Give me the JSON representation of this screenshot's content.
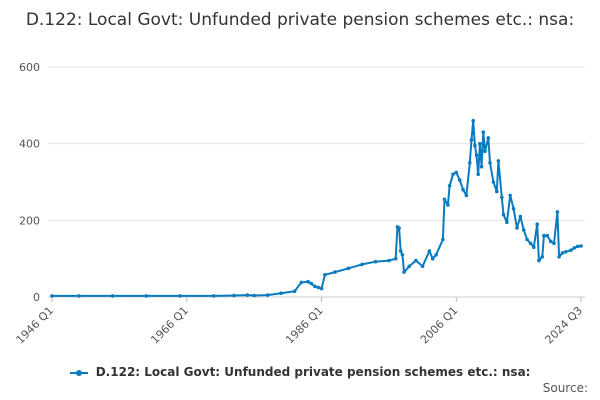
{
  "chart_data": {
    "type": "line",
    "title": "D.122: Local Govt: Unfunded private pension schemes etc.: nsa:",
    "xlabel": "",
    "ylabel": "",
    "ylim": [
      0,
      600
    ],
    "yticks": [
      0,
      200,
      400,
      600
    ],
    "grid": true,
    "legend_position": "bottom",
    "xticks": [
      "1946 Q1",
      "1966 Q1",
      "1986 Q1",
      "2006 Q1",
      "2024 Q3"
    ],
    "series": [
      {
        "name": "D.122: Local Govt: Unfunded private pension schemes etc.: nsa:",
        "color": "#0b7bbf",
        "points": [
          [
            "1946 Q1",
            3
          ],
          [
            "1950 Q1",
            3
          ],
          [
            "1955 Q1",
            3
          ],
          [
            "1960 Q1",
            3
          ],
          [
            "1965 Q1",
            3
          ],
          [
            "1970 Q1",
            3
          ],
          [
            "1973 Q1",
            4
          ],
          [
            "1975 Q1",
            5
          ],
          [
            "1976 Q1",
            4
          ],
          [
            "1978 Q1",
            5
          ],
          [
            "1980 Q1",
            10
          ],
          [
            "1982 Q1",
            15
          ],
          [
            "1983 Q1",
            38
          ],
          [
            "1984 Q1",
            40
          ],
          [
            "1984 Q3",
            35
          ],
          [
            "1985 Q1",
            28
          ],
          [
            "1985 Q3",
            25
          ],
          [
            "1986 Q1",
            22
          ],
          [
            "1986 Q3",
            58
          ],
          [
            "1988 Q1",
            65
          ],
          [
            "1990 Q1",
            75
          ],
          [
            "1992 Q1",
            85
          ],
          [
            "1994 Q1",
            92
          ],
          [
            "1996 Q1",
            95
          ],
          [
            "1997 Q1",
            100
          ],
          [
            "1997 Q2",
            183
          ],
          [
            "1997 Q3",
            180
          ],
          [
            "1997 Q4",
            120
          ],
          [
            "1998 Q1",
            110
          ],
          [
            "1998 Q2",
            65
          ],
          [
            "1999 Q1",
            80
          ],
          [
            "2000 Q1",
            95
          ],
          [
            "2001 Q1",
            80
          ],
          [
            "2002 Q1",
            120
          ],
          [
            "2002 Q3",
            100
          ],
          [
            "2003 Q1",
            110
          ],
          [
            "2004 Q1",
            150
          ],
          [
            "2004 Q2",
            255
          ],
          [
            "2004 Q4",
            240
          ],
          [
            "2005 Q1",
            290
          ],
          [
            "2005 Q3",
            320
          ],
          [
            "2006 Q1",
            325
          ],
          [
            "2006 Q3",
            305
          ],
          [
            "2007 Q1",
            280
          ],
          [
            "2007 Q3",
            265
          ],
          [
            "2008 Q1",
            350
          ],
          [
            "2008 Q2",
            410
          ],
          [
            "2008 Q3",
            460
          ],
          [
            "2008 Q4",
            395
          ],
          [
            "2009 Q1",
            370
          ],
          [
            "2009 Q2",
            320
          ],
          [
            "2009 Q3",
            400
          ],
          [
            "2009 Q4",
            340
          ],
          [
            "2010 Q1",
            430
          ],
          [
            "2010 Q2",
            380
          ],
          [
            "2010 Q4",
            415
          ],
          [
            "2011 Q1",
            350
          ],
          [
            "2011 Q3",
            300
          ],
          [
            "2012 Q1",
            275
          ],
          [
            "2012 Q2",
            355
          ],
          [
            "2012 Q4",
            260
          ],
          [
            "2013 Q1",
            215
          ],
          [
            "2013 Q3",
            195
          ],
          [
            "2014 Q1",
            265
          ],
          [
            "2014 Q3",
            230
          ],
          [
            "2015 Q1",
            180
          ],
          [
            "2015 Q3",
            210
          ],
          [
            "2016 Q1",
            175
          ],
          [
            "2016 Q3",
            150
          ],
          [
            "2017 Q1",
            140
          ],
          [
            "2017 Q3",
            130
          ],
          [
            "2018 Q1",
            190
          ],
          [
            "2018 Q2",
            95
          ],
          [
            "2018 Q4",
            105
          ],
          [
            "2019 Q1",
            160
          ],
          [
            "2019 Q3",
            160
          ],
          [
            "2020 Q1",
            145
          ],
          [
            "2020 Q3",
            140
          ],
          [
            "2021 Q1",
            222
          ],
          [
            "2021 Q2",
            105
          ],
          [
            "2021 Q4",
            115
          ],
          [
            "2022 Q2",
            118
          ],
          [
            "2023 Q1",
            122
          ],
          [
            "2023 Q3",
            128
          ],
          [
            "2024 Q1",
            132
          ],
          [
            "2024 Q3",
            133
          ]
        ]
      }
    ]
  },
  "source_label": "Source:"
}
